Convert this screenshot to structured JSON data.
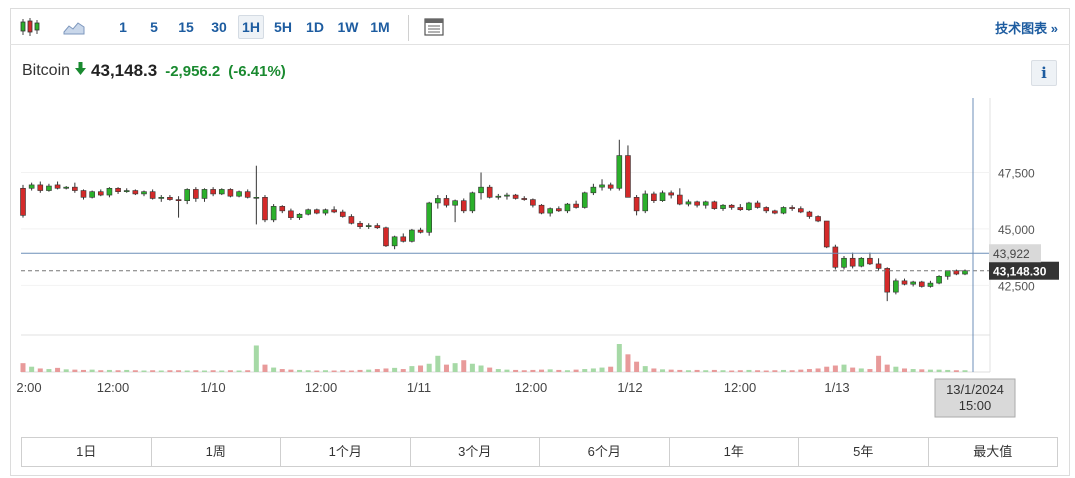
{
  "toolbar": {
    "intervals": [
      "1",
      "5",
      "15",
      "30",
      "1H",
      "5H",
      "1D",
      "1W",
      "1M"
    ],
    "active_interval": "1H",
    "tech_chart_link": "技术图表 »"
  },
  "quote": {
    "name": "Bitcoin",
    "direction": "down",
    "last": "43,148.3",
    "change": "-2,956.2",
    "change_pct": "(-6.41%)",
    "change_color": "#1a8a30",
    "info_label": "i"
  },
  "chart_data": {
    "type": "candlestick",
    "y_ticks": [
      "47,500",
      "45,000",
      "42,500"
    ],
    "y_ticks_values": [
      47500,
      45000,
      42500
    ],
    "ylim": [
      40300,
      50800
    ],
    "x_tick_labels": [
      "2:00",
      "12:00",
      "1/10",
      "12:00",
      "1/11",
      "12:00",
      "1/12",
      "12:00",
      "1/13"
    ],
    "last_price_label": "43,148.30",
    "crosshair_price_label": "43,922",
    "crosshair_time_label": [
      "13/1/2024",
      "15:00"
    ],
    "up_color": "#2bb02b",
    "down_color": "#d42a2a",
    "candles": [
      [
        46800,
        46950,
        45500,
        45600
      ],
      [
        46800,
        47050,
        46700,
        46950
      ],
      [
        46950,
        47100,
        46600,
        46700
      ],
      [
        46700,
        47000,
        46650,
        46900
      ],
      [
        46950,
        47100,
        46750,
        46800
      ],
      [
        46800,
        46900,
        46750,
        46850
      ],
      [
        46850,
        47050,
        46600,
        46700
      ],
      [
        46700,
        46750,
        46300,
        46400
      ],
      [
        46400,
        46700,
        46350,
        46650
      ],
      [
        46650,
        46750,
        46450,
        46500
      ],
      [
        46500,
        46850,
        46400,
        46800
      ],
      [
        46800,
        46850,
        46550,
        46650
      ],
      [
        46650,
        46800,
        46600,
        46700
      ],
      [
        46700,
        46750,
        46500,
        46550
      ],
      [
        46550,
        46700,
        46450,
        46650
      ],
      [
        46650,
        46750,
        46300,
        46350
      ],
      [
        46350,
        46500,
        46200,
        46400
      ],
      [
        46400,
        46500,
        46250,
        46300
      ],
      [
        46300,
        46450,
        45500,
        46250
      ],
      [
        46250,
        46800,
        46100,
        46750
      ],
      [
        46750,
        46850,
        46200,
        46350
      ],
      [
        46350,
        46800,
        46200,
        46750
      ],
      [
        46750,
        46850,
        46450,
        46550
      ],
      [
        46550,
        46800,
        46500,
        46750
      ],
      [
        46750,
        46800,
        46400,
        46450
      ],
      [
        46450,
        46700,
        46400,
        46650
      ],
      [
        46650,
        46750,
        46350,
        46400
      ],
      [
        46400,
        47800,
        45200,
        46400
      ],
      [
        46400,
        46500,
        45300,
        45400
      ],
      [
        45400,
        46100,
        45300,
        46000
      ],
      [
        46000,
        46050,
        45700,
        45800
      ],
      [
        45800,
        45900,
        45400,
        45500
      ],
      [
        45500,
        45700,
        45400,
        45650
      ],
      [
        45650,
        45900,
        45600,
        45850
      ],
      [
        45850,
        45900,
        45650,
        45700
      ],
      [
        45700,
        45900,
        45600,
        45850
      ],
      [
        45850,
        46000,
        45700,
        45750
      ],
      [
        45750,
        45850,
        45500,
        45550
      ],
      [
        45550,
        45650,
        45200,
        45250
      ],
      [
        45250,
        45350,
        45000,
        45100
      ],
      [
        45100,
        45250,
        45000,
        45150
      ],
      [
        45150,
        45250,
        45000,
        45050
      ],
      [
        45050,
        45100,
        44200,
        44250
      ],
      [
        44250,
        44700,
        44100,
        44650
      ],
      [
        44650,
        44800,
        44400,
        44450
      ],
      [
        44450,
        45000,
        44400,
        44950
      ],
      [
        44950,
        45050,
        44800,
        44850
      ],
      [
        44850,
        46200,
        44700,
        46150
      ],
      [
        46150,
        46500,
        45900,
        46350
      ],
      [
        46350,
        46500,
        45950,
        46050
      ],
      [
        46050,
        46300,
        45300,
        46250
      ],
      [
        46250,
        46350,
        45700,
        45800
      ],
      [
        45800,
        46650,
        45700,
        46600
      ],
      [
        46600,
        47500,
        46300,
        46850
      ],
      [
        46850,
        46950,
        46350,
        46400
      ],
      [
        46400,
        46550,
        46300,
        46450
      ],
      [
        46450,
        46600,
        46300,
        46500
      ],
      [
        46500,
        46550,
        46300,
        46350
      ],
      [
        46350,
        46450,
        46250,
        46300
      ],
      [
        46300,
        46350,
        45950,
        46050
      ],
      [
        46050,
        46100,
        45650,
        45700
      ],
      [
        45700,
        45950,
        45550,
        45900
      ],
      [
        45900,
        46000,
        45750,
        45800
      ],
      [
        45800,
        46150,
        45700,
        46100
      ],
      [
        46100,
        46250,
        45900,
        45950
      ],
      [
        45950,
        46650,
        45900,
        46600
      ],
      [
        46600,
        47000,
        46500,
        46850
      ],
      [
        46850,
        47200,
        46700,
        46950
      ],
      [
        46950,
        47050,
        46700,
        46800
      ],
      [
        46800,
        48950,
        46700,
        48250
      ],
      [
        48250,
        48700,
        46400,
        46400
      ],
      [
        46400,
        46500,
        45600,
        45800
      ],
      [
        45800,
        46700,
        45700,
        46550
      ],
      [
        46550,
        46650,
        46150,
        46250
      ],
      [
        46250,
        46700,
        46200,
        46600
      ],
      [
        46600,
        46700,
        46350,
        46500
      ],
      [
        46500,
        46800,
        46050,
        46100
      ],
      [
        46100,
        46300,
        46000,
        46200
      ],
      [
        46200,
        46250,
        45950,
        46050
      ],
      [
        46050,
        46250,
        45900,
        46200
      ],
      [
        46200,
        46250,
        45850,
        45900
      ],
      [
        45900,
        46100,
        45800,
        46050
      ],
      [
        46050,
        46100,
        45850,
        45950
      ],
      [
        45950,
        46100,
        45800,
        45850
      ],
      [
        45850,
        46200,
        45800,
        46150
      ],
      [
        46150,
        46250,
        45900,
        45950
      ],
      [
        45950,
        46000,
        45700,
        45800
      ],
      [
        45800,
        45850,
        45650,
        45700
      ],
      [
        45700,
        46000,
        45650,
        45950
      ],
      [
        45950,
        46050,
        45800,
        45900
      ],
      [
        45900,
        46000,
        45700,
        45750
      ],
      [
        45750,
        45800,
        45450,
        45550
      ],
      [
        45550,
        45600,
        45300,
        45350
      ],
      [
        45350,
        45350,
        44150,
        44200
      ],
      [
        44200,
        44300,
        43200,
        43300
      ],
      [
        43300,
        43800,
        43200,
        43700
      ],
      [
        43700,
        43950,
        43250,
        43350
      ],
      [
        43350,
        43750,
        43300,
        43700
      ],
      [
        43700,
        43950,
        43400,
        43450
      ],
      [
        43450,
        43700,
        43150,
        43250
      ],
      [
        43250,
        43300,
        41800,
        42200
      ],
      [
        42200,
        42800,
        42100,
        42700
      ],
      [
        42700,
        42800,
        42500,
        42550
      ],
      [
        42550,
        42700,
        42450,
        42650
      ],
      [
        42650,
        42700,
        42400,
        42450
      ],
      [
        42450,
        42700,
        42400,
        42600
      ],
      [
        42600,
        42950,
        42550,
        42900
      ],
      [
        42900,
        43150,
        42750,
        43150
      ],
      [
        43150,
        43200,
        42950,
        43000
      ],
      [
        43000,
        43200,
        42950,
        43148
      ]
    ],
    "volumes": [
      30,
      18,
      12,
      10,
      14,
      9,
      8,
      7,
      8,
      6,
      7,
      6,
      7,
      6,
      5,
      6,
      5,
      6,
      6,
      5,
      6,
      5,
      6,
      5,
      6,
      5,
      6,
      90,
      25,
      15,
      10,
      8,
      7,
      6,
      5,
      6,
      5,
      6,
      5,
      7,
      8,
      10,
      12,
      14,
      10,
      20,
      22,
      28,
      55,
      25,
      30,
      40,
      28,
      22,
      15,
      10,
      8,
      7,
      6,
      7,
      8,
      9,
      7,
      6,
      8,
      10,
      12,
      15,
      18,
      95,
      60,
      35,
      20,
      12,
      9,
      8,
      7,
      6,
      7,
      6,
      7,
      6,
      5,
      6,
      7,
      6,
      5,
      6,
      7,
      6,
      8,
      10,
      12,
      18,
      22,
      25,
      15,
      12,
      10,
      55,
      25,
      18,
      12,
      10,
      9,
      8,
      8,
      7,
      6,
      6
    ]
  },
  "ranges": [
    "1日",
    "1周",
    "1个月",
    "3个月",
    "6个月",
    "1年",
    "5年",
    "最大值"
  ]
}
